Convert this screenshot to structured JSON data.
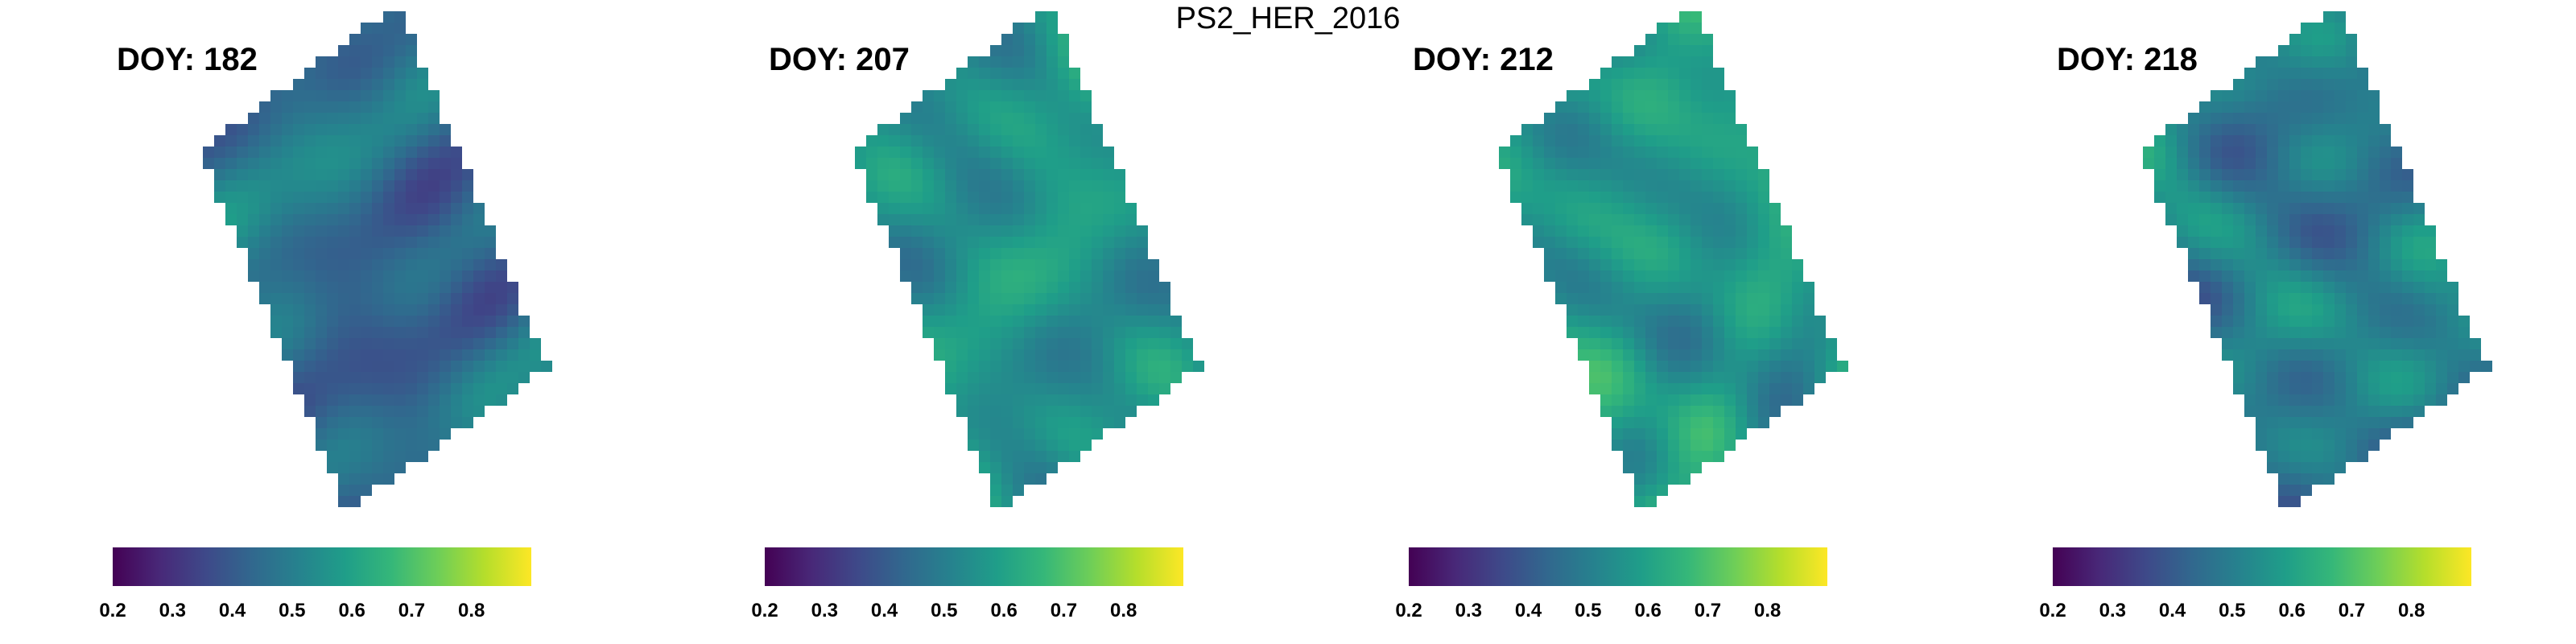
{
  "figure": {
    "title": "PS2_HER_2016"
  },
  "colormap": {
    "name": "viridis",
    "stops": [
      "#440154",
      "#482878",
      "#3e4989",
      "#31688e",
      "#26828e",
      "#1f9e89",
      "#35b779",
      "#6ece58",
      "#b5de2b",
      "#fde725"
    ]
  },
  "chart_data": [
    {
      "type": "heatmap",
      "title": "DOY: 182",
      "doy": 182,
      "seed": 11,
      "mean": 0.46,
      "amplitude": 0.11,
      "corners": [
        [
          0.21,
          0.1
        ],
        [
          0.56,
          0.96
        ],
        [
          1.04,
          0.62
        ],
        [
          0.68,
          -0.25
        ]
      ],
      "colorbar": {
        "range": [
          0.2,
          0.9
        ],
        "ticks": [
          0.2,
          0.3,
          0.4,
          0.5,
          0.6,
          0.7,
          0.8
        ]
      }
    },
    {
      "type": "heatmap",
      "title": "DOY: 207",
      "doy": 207,
      "seed": 23,
      "mean": 0.53,
      "amplitude": 0.12,
      "corners": [
        [
          0.21,
          0.1
        ],
        [
          0.56,
          0.96
        ],
        [
          1.04,
          0.62
        ],
        [
          0.68,
          -0.25
        ]
      ],
      "colorbar": {
        "range": [
          0.2,
          0.9
        ],
        "ticks": [
          0.2,
          0.3,
          0.4,
          0.5,
          0.6,
          0.7,
          0.8
        ]
      }
    },
    {
      "type": "heatmap",
      "title": "DOY: 212",
      "doy": 212,
      "seed": 37,
      "mean": 0.58,
      "amplitude": 0.12,
      "corners": [
        [
          0.21,
          0.1
        ],
        [
          0.56,
          0.96
        ],
        [
          1.04,
          0.62
        ],
        [
          0.68,
          -0.25
        ]
      ],
      "colorbar": {
        "range": [
          0.2,
          0.9
        ],
        "ticks": [
          0.2,
          0.3,
          0.4,
          0.5,
          0.6,
          0.7,
          0.8
        ]
      }
    },
    {
      "type": "heatmap",
      "title": "DOY: 218",
      "doy": 218,
      "seed": 53,
      "mean": 0.49,
      "amplitude": 0.12,
      "corners": [
        [
          0.21,
          0.1
        ],
        [
          0.56,
          0.96
        ],
        [
          1.04,
          0.62
        ],
        [
          0.68,
          -0.25
        ]
      ],
      "colorbar": {
        "range": [
          0.2,
          0.9
        ],
        "ticks": [
          0.2,
          0.3,
          0.4,
          0.5,
          0.6,
          0.7,
          0.8
        ]
      }
    }
  ]
}
